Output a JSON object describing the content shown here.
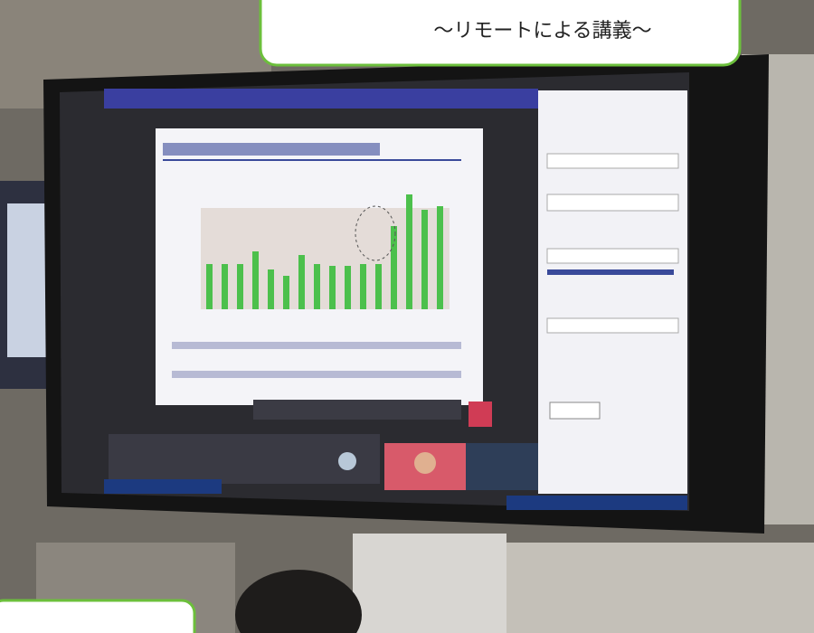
{
  "caption": "〜リモートによる講義〜"
}
